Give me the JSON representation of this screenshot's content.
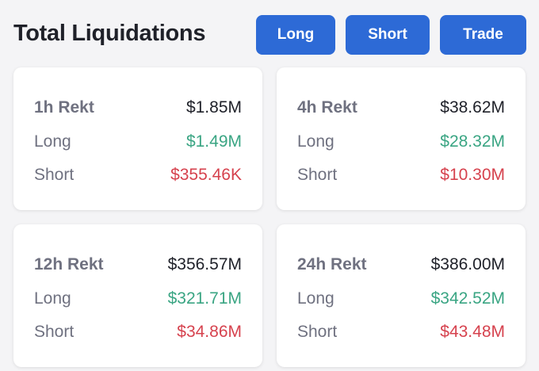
{
  "header": {
    "title": "Total Liquidations",
    "buttons": {
      "long": "Long",
      "short": "Short",
      "trade": "Trade"
    }
  },
  "colors": {
    "accent": "#2d6ad6",
    "long": "#3aa583",
    "short": "#d6424e",
    "text": "#1f2129",
    "muted": "#6f7180",
    "background": "#f4f4f6"
  },
  "cards": [
    {
      "period_label": "1h Rekt",
      "total": "$1.85M",
      "long_label": "Long",
      "long_value": "$1.49M",
      "short_label": "Short",
      "short_value": "$355.46K"
    },
    {
      "period_label": "4h Rekt",
      "total": "$38.62M",
      "long_label": "Long",
      "long_value": "$28.32M",
      "short_label": "Short",
      "short_value": "$10.30M"
    },
    {
      "period_label": "12h Rekt",
      "total": "$356.57M",
      "long_label": "Long",
      "long_value": "$321.71M",
      "short_label": "Short",
      "short_value": "$34.86M"
    },
    {
      "period_label": "24h Rekt",
      "total": "$386.00M",
      "long_label": "Long",
      "long_value": "$342.52M",
      "short_label": "Short",
      "short_value": "$43.48M"
    }
  ]
}
